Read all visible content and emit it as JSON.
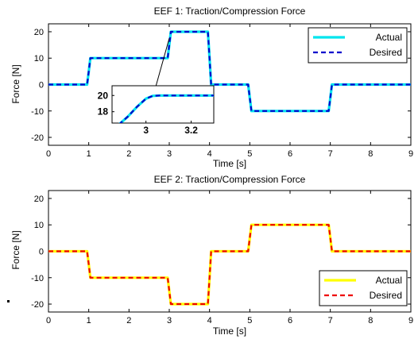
{
  "chart_data": [
    {
      "type": "line",
      "title": "EEF 1: Traction/Compression Force",
      "xlabel": "Time [s]",
      "ylabel": "Force [N]",
      "xlim": [
        0,
        9
      ],
      "ylim": [
        -23,
        23
      ],
      "xticks": [
        "0",
        "1",
        "2",
        "3",
        "4",
        "5",
        "6",
        "7",
        "8",
        "9"
      ],
      "yticks": [
        "-20",
        "-10",
        "0",
        "10",
        "20"
      ],
      "grid": false,
      "legend_position": "top-right",
      "series": [
        {
          "name": "Actual",
          "color": "#00e5ee",
          "style": "solid",
          "x": [
            0,
            0.96,
            1.0,
            1.04,
            2.96,
            3.0,
            3.04,
            3.96,
            4.0,
            4.04,
            4.96,
            5.0,
            5.04,
            6.96,
            7.0,
            7.04,
            9
          ],
          "y": [
            0,
            0,
            5,
            10,
            10,
            15,
            20,
            20,
            10,
            0,
            0,
            -5,
            -10,
            -10,
            -5,
            0,
            0
          ]
        },
        {
          "name": "Desired",
          "color": "#0000cc",
          "style": "dashed",
          "x": [
            0,
            0.96,
            1.0,
            1.04,
            2.96,
            3.0,
            3.04,
            3.96,
            4.0,
            4.04,
            4.96,
            5.0,
            5.04,
            6.96,
            7.0,
            7.04,
            9
          ],
          "y": [
            0,
            0,
            5,
            10,
            10,
            15,
            20,
            20,
            10,
            0,
            0,
            -5,
            -10,
            -10,
            -5,
            0,
            0
          ]
        }
      ],
      "inset": {
        "xlim": [
          2.85,
          3.3
        ],
        "ylim": [
          16.6,
          21.2
        ],
        "xticks": [
          "3",
          "3.2"
        ],
        "yticks": [
          "20",
          "18"
        ],
        "x": [
          2.88,
          2.92,
          2.96,
          3.0,
          3.03,
          3.06,
          3.1,
          3.15,
          3.2,
          3.25,
          3.3
        ],
        "y": [
          16.4,
          17.4,
          18.6,
          19.6,
          19.95,
          20.0,
          20.0,
          20.0,
          20.0,
          20.0,
          20.0
        ]
      }
    },
    {
      "type": "line",
      "title": "EEF 2: Traction/Compression Force",
      "xlabel": "Time [s]",
      "ylabel": "Force [N]",
      "xlim": [
        0,
        9
      ],
      "ylim": [
        -23,
        23
      ],
      "xticks": [
        "0",
        "1",
        "2",
        "3",
        "4",
        "5",
        "6",
        "7",
        "8",
        "9"
      ],
      "yticks": [
        "-20",
        "-10",
        "0",
        "10",
        "20"
      ],
      "grid": false,
      "legend_position": "bottom-right",
      "series": [
        {
          "name": "Actual",
          "color": "#ffff00",
          "style": "solid",
          "x": [
            0,
            0.96,
            1.0,
            1.04,
            2.96,
            3.0,
            3.04,
            3.96,
            4.0,
            4.04,
            4.96,
            5.0,
            5.04,
            6.96,
            7.0,
            7.04,
            9
          ],
          "y": [
            0,
            0,
            -5,
            -10,
            -10,
            -15,
            -20,
            -20,
            -10,
            0,
            0,
            5,
            10,
            10,
            5,
            0,
            0
          ]
        },
        {
          "name": "Desired",
          "color": "#ee0000",
          "style": "dashed",
          "x": [
            0,
            0.96,
            1.0,
            1.04,
            2.96,
            3.0,
            3.04,
            3.96,
            4.0,
            4.04,
            4.96,
            5.0,
            5.04,
            6.96,
            7.0,
            7.04,
            9
          ],
          "y": [
            0,
            0,
            -5,
            -10,
            -10,
            -15,
            -20,
            -20,
            -10,
            0,
            0,
            5,
            10,
            10,
            5,
            0,
            0
          ]
        }
      ]
    }
  ]
}
